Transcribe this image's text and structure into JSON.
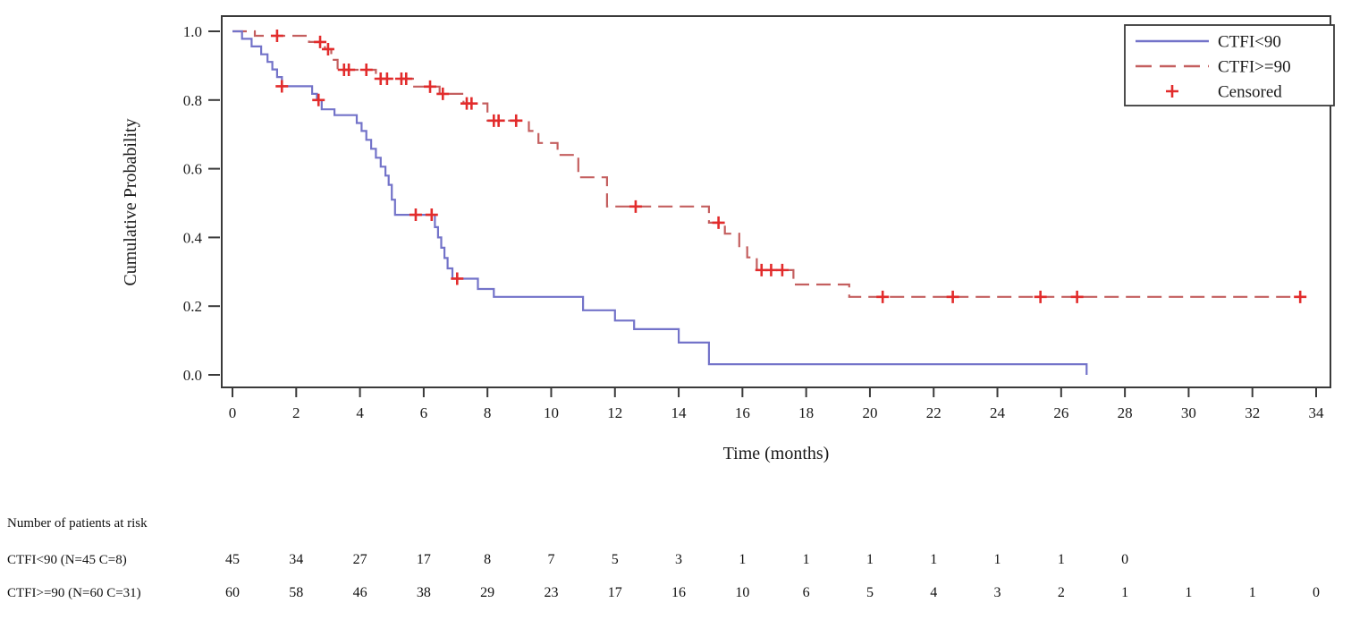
{
  "chart_data": {
    "type": "line",
    "subtype": "kaplan-meier-step",
    "title": "",
    "xlabel": "Time (months)",
    "ylabel": "Cumulative Probability",
    "xlim": [
      0,
      34
    ],
    "ylim": [
      0.0,
      1.0
    ],
    "grid": false,
    "xticks": [
      0,
      2,
      4,
      6,
      8,
      10,
      12,
      14,
      16,
      18,
      20,
      22,
      24,
      26,
      28,
      30,
      32,
      34
    ],
    "yticks": [
      "0.0",
      "0.2",
      "0.4",
      "0.6",
      "0.8",
      "1.0"
    ],
    "frame_color": "#3a3a3a",
    "censored_marker": "plus",
    "censored_marker_color": "#e22c2c",
    "legend": {
      "position": "top-right",
      "entries": [
        {
          "label": "CTFI<90",
          "type": "line",
          "style": "solid",
          "color": "#7373c9"
        },
        {
          "label": "CTFI>=90",
          "type": "line",
          "style": "dashed",
          "color": "#c45f5f"
        },
        {
          "label": "Censored",
          "type": "marker",
          "style": "plus",
          "color": "#e22c2c"
        }
      ]
    },
    "series": [
      {
        "name": "CTFI<90",
        "color": "#7373c9",
        "line_style": "solid",
        "step_points": [
          [
            0,
            1.0
          ],
          [
            0.3,
            0.978
          ],
          [
            0.6,
            0.956
          ],
          [
            0.9,
            0.933
          ],
          [
            1.1,
            0.911
          ],
          [
            1.25,
            0.889
          ],
          [
            1.4,
            0.867
          ],
          [
            1.55,
            0.84
          ],
          [
            2.5,
            0.818
          ],
          [
            2.65,
            0.8
          ],
          [
            2.8,
            0.773
          ],
          [
            3.2,
            0.756
          ],
          [
            3.9,
            0.733
          ],
          [
            4.05,
            0.71
          ],
          [
            4.2,
            0.684
          ],
          [
            4.35,
            0.658
          ],
          [
            4.5,
            0.632
          ],
          [
            4.65,
            0.606
          ],
          [
            4.8,
            0.58
          ],
          [
            4.9,
            0.553
          ],
          [
            5.0,
            0.51
          ],
          [
            5.1,
            0.466
          ],
          [
            6.35,
            0.43
          ],
          [
            6.45,
            0.4
          ],
          [
            6.55,
            0.37
          ],
          [
            6.65,
            0.34
          ],
          [
            6.75,
            0.31
          ],
          [
            6.9,
            0.28
          ],
          [
            7.7,
            0.25
          ],
          [
            8.2,
            0.227
          ],
          [
            11.0,
            0.188
          ],
          [
            12.0,
            0.158
          ],
          [
            12.6,
            0.133
          ],
          [
            14.0,
            0.094
          ],
          [
            14.95,
            0.031
          ],
          [
            26.8,
            0.0
          ]
        ],
        "censored": [
          [
            1.55,
            0.84
          ],
          [
            2.7,
            0.8
          ],
          [
            5.75,
            0.466
          ],
          [
            6.25,
            0.466
          ],
          [
            7.05,
            0.28
          ]
        ]
      },
      {
        "name": "CTFI>=90",
        "color": "#c45f5f",
        "line_style": "dashed",
        "step_points": [
          [
            0,
            1.0
          ],
          [
            0.7,
            0.987
          ],
          [
            2.4,
            0.969
          ],
          [
            2.9,
            0.948
          ],
          [
            3.1,
            0.917
          ],
          [
            3.3,
            0.888
          ],
          [
            4.5,
            0.862
          ],
          [
            5.7,
            0.839
          ],
          [
            6.5,
            0.818
          ],
          [
            7.25,
            0.79
          ],
          [
            8.0,
            0.74
          ],
          [
            9.3,
            0.71
          ],
          [
            9.6,
            0.675
          ],
          [
            10.2,
            0.64
          ],
          [
            10.85,
            0.575
          ],
          [
            11.75,
            0.49
          ],
          [
            14.95,
            0.443
          ],
          [
            15.45,
            0.411
          ],
          [
            15.9,
            0.371
          ],
          [
            16.15,
            0.342
          ],
          [
            16.45,
            0.305
          ],
          [
            17.6,
            0.263
          ],
          [
            19.35,
            0.227
          ],
          [
            33.5,
            0.227
          ]
        ],
        "censored": [
          [
            1.4,
            0.987
          ],
          [
            2.75,
            0.969
          ],
          [
            3.0,
            0.948
          ],
          [
            3.5,
            0.888
          ],
          [
            3.65,
            0.888
          ],
          [
            4.2,
            0.888
          ],
          [
            4.65,
            0.862
          ],
          [
            4.85,
            0.862
          ],
          [
            5.3,
            0.862
          ],
          [
            5.45,
            0.862
          ],
          [
            6.2,
            0.839
          ],
          [
            6.6,
            0.818
          ],
          [
            7.35,
            0.79
          ],
          [
            7.5,
            0.79
          ],
          [
            8.2,
            0.74
          ],
          [
            8.35,
            0.74
          ],
          [
            8.9,
            0.74
          ],
          [
            12.65,
            0.49
          ],
          [
            15.25,
            0.443
          ],
          [
            16.6,
            0.305
          ],
          [
            16.9,
            0.305
          ],
          [
            17.25,
            0.305
          ],
          [
            20.4,
            0.227
          ],
          [
            22.6,
            0.227
          ],
          [
            25.35,
            0.227
          ],
          [
            26.5,
            0.227
          ],
          [
            33.5,
            0.227
          ]
        ]
      }
    ],
    "at_risk_table": {
      "title": "Number of patients at risk",
      "time_points": [
        0,
        2,
        4,
        6,
        8,
        10,
        12,
        14,
        16,
        18,
        20,
        22,
        24,
        26,
        28,
        30,
        32,
        34
      ],
      "rows": [
        {
          "label": "CTFI<90 (N=45 C=8)",
          "values": [
            45,
            34,
            27,
            17,
            8,
            7,
            5,
            3,
            1,
            1,
            1,
            1,
            1,
            1,
            0
          ]
        },
        {
          "label": "CTFI>=90 (N=60 C=31)",
          "values": [
            60,
            58,
            46,
            38,
            29,
            23,
            17,
            16,
            10,
            6,
            5,
            4,
            3,
            2,
            1,
            1,
            1,
            0
          ]
        }
      ]
    }
  }
}
